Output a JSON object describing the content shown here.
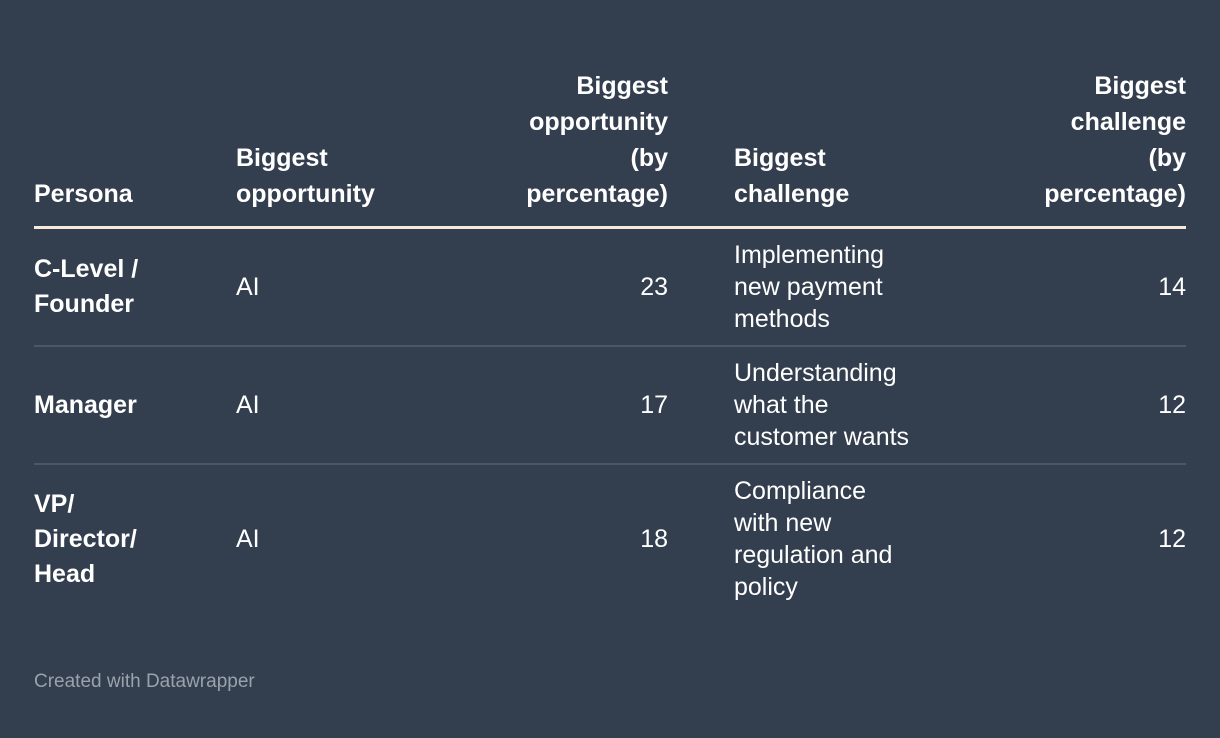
{
  "theme": {
    "background": "#333e4e",
    "text": "#ffffff",
    "header_rule": "#f8e9de",
    "row_divider": "#4c5766",
    "footer_text": "#9aa2ab"
  },
  "table": {
    "header": [
      {
        "label": "Persona",
        "align": "left"
      },
      {
        "label": "Biggest\nopportunity",
        "align": "left"
      },
      {
        "label": "Biggest\nopportunity\n(by\npercentage)",
        "align": "right"
      },
      {
        "label": "Biggest\nchallenge",
        "align": "left"
      },
      {
        "label": "Biggest\nchallenge\n(by\npercentage)",
        "align": "right"
      }
    ],
    "rows": [
      {
        "persona": "C-Level /\nFounder",
        "opportunity": "AI",
        "opportunity_pct": "23",
        "challenge": "Implementing\nnew payment\nmethods",
        "challenge_pct": "14"
      },
      {
        "persona": "Manager",
        "opportunity": "AI",
        "opportunity_pct": "17",
        "challenge": "Understanding\nwhat the\ncustomer wants",
        "challenge_pct": "12"
      },
      {
        "persona": "VP/\nDirector/\nHead",
        "opportunity": "AI",
        "opportunity_pct": "18",
        "challenge": "Compliance\nwith new\nregulation and\npolicy",
        "challenge_pct": "12"
      }
    ]
  },
  "footer": {
    "attribution": "Created with Datawrapper"
  },
  "chart_data": {
    "type": "table",
    "title": "",
    "columns": [
      "Persona",
      "Biggest opportunity",
      "Biggest opportunity (by percentage)",
      "Biggest challenge",
      "Biggest challenge (by percentage)"
    ],
    "rows": [
      [
        "C-Level / Founder",
        "AI",
        23,
        "Implementing new payment methods",
        14
      ],
      [
        "Manager",
        "AI",
        17,
        "Understanding what the customer wants",
        12
      ],
      [
        "VP/Director/Head",
        "AI",
        18,
        "Compliance with new regulation and policy",
        12
      ]
    ]
  }
}
